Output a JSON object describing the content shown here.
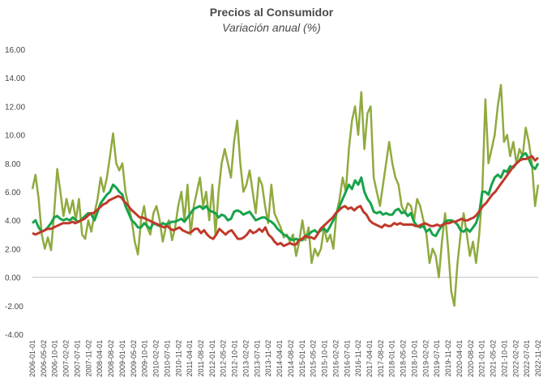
{
  "chart_data": {
    "type": "line",
    "title": "Precios al Consumidor",
    "subtitle": "Variación anual (%)",
    "xlabel": "",
    "ylabel": "",
    "ylim": [
      -4,
      16
    ],
    "yticks": [
      "16.00",
      "14.00",
      "12.00",
      "10.00",
      "8.00",
      "6.00",
      "4.00",
      "2.00",
      "0.00",
      "-2.00",
      "-4.00"
    ],
    "xlabels": [
      "2006-01-01",
      "2006-05-02",
      "2006-10-01",
      "2007-02-02",
      "2007-07-01",
      "2007-11-02",
      "2008-04-01",
      "2008-08-02",
      "2009-01-01",
      "2009-05-02",
      "2009-10-01",
      "2010-02-02",
      "2010-07-01",
      "2010-11-02",
      "2011-04-01",
      "2011-08-02",
      "2012-01-01",
      "2012-05-02",
      "2012-10-01",
      "2013-02-02",
      "2013-07-01",
      "2013-11-02",
      "2014-04-01",
      "2014-08-02",
      "2015-01-01",
      "2015-05-02",
      "2015-10-01",
      "2016-02-02",
      "2016-07-01",
      "2016-11-02",
      "2017-04-01",
      "2017-08-02",
      "2018-01-01",
      "2018-05-02",
      "2018-10-01",
      "2019-02-02",
      "2019-07-01",
      "2019-11-02",
      "2020-04-01",
      "2020-08-02",
      "2021-01-01",
      "2021-05-02",
      "2021-10-01",
      "2022-02-02",
      "2022-07-01",
      "2022-11-02"
    ],
    "grid": false,
    "legend": "none",
    "series": [
      {
        "color": "#8faa3e",
        "values": [
          6.2,
          7.2,
          5.5,
          3.0,
          2.0,
          2.8,
          1.9,
          4.5,
          7.6,
          6.0,
          4.3,
          5.5,
          4.5,
          5.4,
          4.0,
          5.5,
          3.0,
          2.7,
          4.0,
          3.2,
          4.5,
          5.5,
          7.0,
          6.0,
          7.0,
          8.5,
          10.1,
          8.0,
          7.5,
          8.0,
          6.0,
          5.0,
          4.0,
          2.5,
          1.6,
          4.0,
          5.0,
          3.5,
          3.0,
          4.5,
          5.0,
          4.0,
          2.5,
          3.5,
          4.0,
          2.6,
          3.5,
          5.0,
          6.0,
          4.0,
          6.5,
          3.0,
          5.0,
          6.0,
          7.0,
          5.0,
          6.0,
          4.0,
          6.5,
          3.0,
          6.0,
          8.0,
          9.0,
          8.0,
          7.0,
          9.5,
          11.0,
          8.0,
          6.0,
          6.5,
          7.5,
          6.0,
          4.5,
          7.0,
          6.5,
          5.0,
          3.8,
          6.5,
          4.5,
          4.0,
          3.5,
          2.8,
          3.0,
          2.5,
          3.0,
          1.5,
          2.5,
          4.0,
          2.6,
          3.5,
          1.0,
          2.0,
          1.5,
          2.0,
          3.5,
          2.5,
          3.0,
          2.0,
          4.5,
          5.5,
          7.0,
          6.0,
          9.0,
          11.0,
          12.0,
          10.0,
          13.0,
          9.0,
          11.5,
          12.0,
          7.0,
          6.0,
          5.0,
          6.5,
          8.0,
          9.5,
          8.0,
          7.0,
          6.5,
          5.0,
          4.5,
          5.2,
          5.0,
          4.0,
          5.5,
          5.0,
          4.0,
          3.0,
          1.0,
          2.0,
          1.5,
          0.0,
          2.5,
          4.5,
          2.0,
          -1.0,
          -2.0,
          1.0,
          3.0,
          4.5,
          3.0,
          1.5,
          2.5,
          1.0,
          3.0,
          6.0,
          12.5,
          8.0,
          9.0,
          10.0,
          12.0,
          13.5,
          9.5,
          10.0,
          8.5,
          9.5,
          8.0,
          9.0,
          8.5,
          10.5,
          9.5,
          8.0,
          5.0,
          6.5
        ]
      },
      {
        "color": "#17a34a",
        "values": [
          3.8,
          4.0,
          3.5,
          3.2,
          3.3,
          3.5,
          3.8,
          4.2,
          4.3,
          4.1,
          4.0,
          4.1,
          4.0,
          4.2,
          4.0,
          3.9,
          4.1,
          4.3,
          4.5,
          4.4,
          4.0,
          4.6,
          5.2,
          5.5,
          5.8,
          6.0,
          6.5,
          6.3,
          6.0,
          5.8,
          5.0,
          4.5,
          4.0,
          3.8,
          3.5,
          3.5,
          3.8,
          3.6,
          3.4,
          3.8,
          3.7,
          3.6,
          3.8,
          3.7,
          3.8,
          3.9,
          3.9,
          4.0,
          4.1,
          3.9,
          4.2,
          4.5,
          4.8,
          4.9,
          5.0,
          4.8,
          5.0,
          4.7,
          4.6,
          4.5,
          4.2,
          4.4,
          4.3,
          4.0,
          4.1,
          4.6,
          4.7,
          4.6,
          4.4,
          4.5,
          4.6,
          4.3,
          4.0,
          4.1,
          4.2,
          4.2,
          4.0,
          3.9,
          3.7,
          3.4,
          3.2,
          3.0,
          2.9,
          2.7,
          2.6,
          2.7,
          2.6,
          2.6,
          2.9,
          3.0,
          3.2,
          3.3,
          3.1,
          3.3,
          3.4,
          3.2,
          3.6,
          4.0,
          4.5,
          5.0,
          5.5,
          6.0,
          6.5,
          6.2,
          6.8,
          6.5,
          7.0,
          6.0,
          5.5,
          5.2,
          4.6,
          4.5,
          4.6,
          4.4,
          4.5,
          4.4,
          4.4,
          4.7,
          4.8,
          4.5,
          4.6,
          4.3,
          4.5,
          3.9,
          3.6,
          3.5,
          3.6,
          3.2,
          3.4,
          3.0,
          2.9,
          3.3,
          3.6,
          3.9,
          4.0,
          4.0,
          3.9,
          3.7,
          3.3,
          3.2,
          3.4,
          3.2,
          3.5,
          3.8,
          4.5,
          6.0,
          6.0,
          5.8,
          6.5,
          7.0,
          7.2,
          7.0,
          7.5,
          7.4,
          7.8,
          7.7,
          8.0,
          8.2,
          8.6,
          8.7,
          8.3,
          7.8,
          7.6,
          8.0
        ]
      },
      {
        "color": "#c0392b",
        "values": [
          3.1,
          3.0,
          3.1,
          3.2,
          3.3,
          3.4,
          3.4,
          3.5,
          3.6,
          3.7,
          3.8,
          3.8,
          3.8,
          3.9,
          3.8,
          3.9,
          4.0,
          4.1,
          4.3,
          4.5,
          4.5,
          4.7,
          4.9,
          5.1,
          5.2,
          5.4,
          5.5,
          5.6,
          5.7,
          5.6,
          5.3,
          5.1,
          4.8,
          4.6,
          4.4,
          4.2,
          4.2,
          4.1,
          4.0,
          3.9,
          3.8,
          3.7,
          3.6,
          3.5,
          3.6,
          3.4,
          3.3,
          3.4,
          3.5,
          3.3,
          3.2,
          3.1,
          3.2,
          3.4,
          3.4,
          3.1,
          3.3,
          3.0,
          2.8,
          2.7,
          3.0,
          3.4,
          3.2,
          3.0,
          3.2,
          3.3,
          3.0,
          2.7,
          2.7,
          2.8,
          3.0,
          3.3,
          3.1,
          3.2,
          3.4,
          3.2,
          3.5,
          3.0,
          2.8,
          2.5,
          2.3,
          2.4,
          2.2,
          2.3,
          2.4,
          2.3,
          2.3,
          2.6,
          2.7,
          2.9,
          2.8,
          2.8,
          2.7,
          3.0,
          3.4,
          3.6,
          3.8,
          4.0,
          4.2,
          4.5,
          4.7,
          4.9,
          5.0,
          4.8,
          4.9,
          4.7,
          4.9,
          5.0,
          4.6,
          4.4,
          4.0,
          3.8,
          3.7,
          3.6,
          3.5,
          3.7,
          3.6,
          3.6,
          3.8,
          3.7,
          3.8,
          3.7,
          3.7,
          3.7,
          3.7,
          3.6,
          3.6,
          3.7,
          3.8,
          3.7,
          3.6,
          3.6,
          3.7,
          3.6,
          3.7,
          3.8,
          3.8,
          3.9,
          3.9,
          4.0,
          4.1,
          4.0,
          4.0,
          4.1,
          4.2,
          4.4,
          4.7,
          5.0,
          5.2,
          5.5,
          5.8,
          6.0,
          6.3,
          6.6,
          6.9,
          7.2,
          7.5,
          7.8,
          8.0,
          8.2,
          8.3,
          8.3,
          8.4,
          8.5,
          8.2,
          8.4
        ]
      }
    ]
  }
}
